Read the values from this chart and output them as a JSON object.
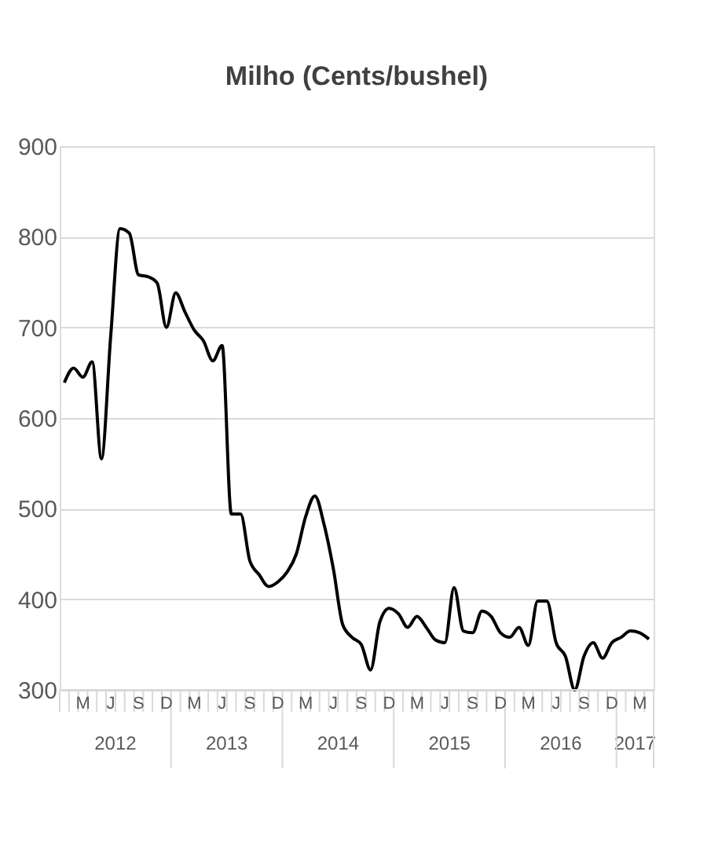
{
  "chart_data": {
    "type": "line",
    "title": "Milho (Cents/bushel)",
    "categories": [
      null,
      null,
      "M",
      null,
      null,
      "J",
      null,
      null,
      "S",
      null,
      null,
      "D",
      null,
      null,
      "M",
      null,
      null,
      "J",
      null,
      null,
      "S",
      null,
      null,
      "D",
      null,
      null,
      "M",
      null,
      null,
      "J",
      null,
      null,
      "S",
      null,
      null,
      "D",
      null,
      null,
      "M",
      null,
      null,
      "J",
      null,
      null,
      "S",
      null,
      null,
      "D",
      null,
      null,
      "M",
      null,
      null,
      "J",
      null,
      null,
      "S",
      null,
      null,
      "D",
      null,
      null,
      "M",
      null
    ],
    "series": [
      {
        "color": "#000000",
        "values": [
          639,
          655,
          645,
          662,
          555,
          691,
          809,
          804,
          758,
          756,
          749,
          700,
          738,
          717,
          697,
          685,
          663,
          680,
          494,
          494,
          442,
          427,
          414,
          419,
          430,
          450,
          491,
          514,
          482,
          433,
          372,
          358,
          350,
          322,
          375,
          390,
          384,
          369,
          381,
          369,
          355,
          352,
          413,
          365,
          363,
          387,
          381,
          363,
          358,
          369,
          349,
          398,
          398,
          352,
          337,
          300,
          337,
          352,
          335,
          352,
          358,
          365,
          363,
          356
        ]
      }
    ],
    "ylim": [
      300,
      900
    ],
    "yticks": [
      300,
      400,
      500,
      600,
      700,
      800,
      900
    ],
    "grid": "y",
    "line_style": "solid",
    "marker": "none",
    "annotations": [
      "2012",
      "2013",
      "2014",
      "2015",
      "2016",
      "2017"
    ]
  }
}
